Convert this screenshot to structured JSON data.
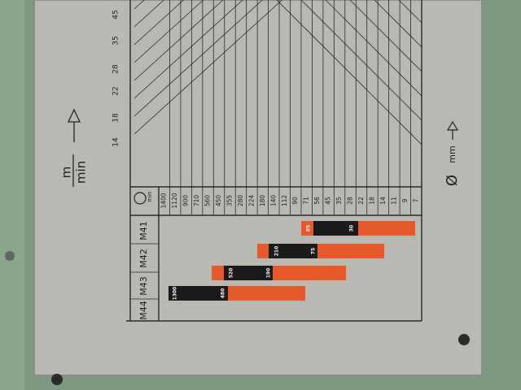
{
  "cutting_speed": {
    "unit_top": "m",
    "unit_bottom": "min",
    "values": [
      14,
      18,
      22,
      28,
      35,
      45
    ]
  },
  "table": {
    "rpm_unit": "min",
    "speeds": [
      1400,
      1120,
      900,
      710,
      560,
      450,
      355,
      280,
      224,
      180,
      140,
      112,
      90,
      71,
      56,
      45,
      35,
      28,
      22,
      18,
      14,
      11,
      9,
      7
    ],
    "gears": [
      {
        "label": "M41",
        "start": "85",
        "end": "30"
      },
      {
        "label": "M42",
        "start": "210",
        "end": "75"
      },
      {
        "label": "M43",
        "start": "520",
        "end": "190"
      },
      {
        "label": "M44",
        "start": "1300",
        "end": "480"
      }
    ]
  },
  "diameter": {
    "unit": "mm"
  }
}
